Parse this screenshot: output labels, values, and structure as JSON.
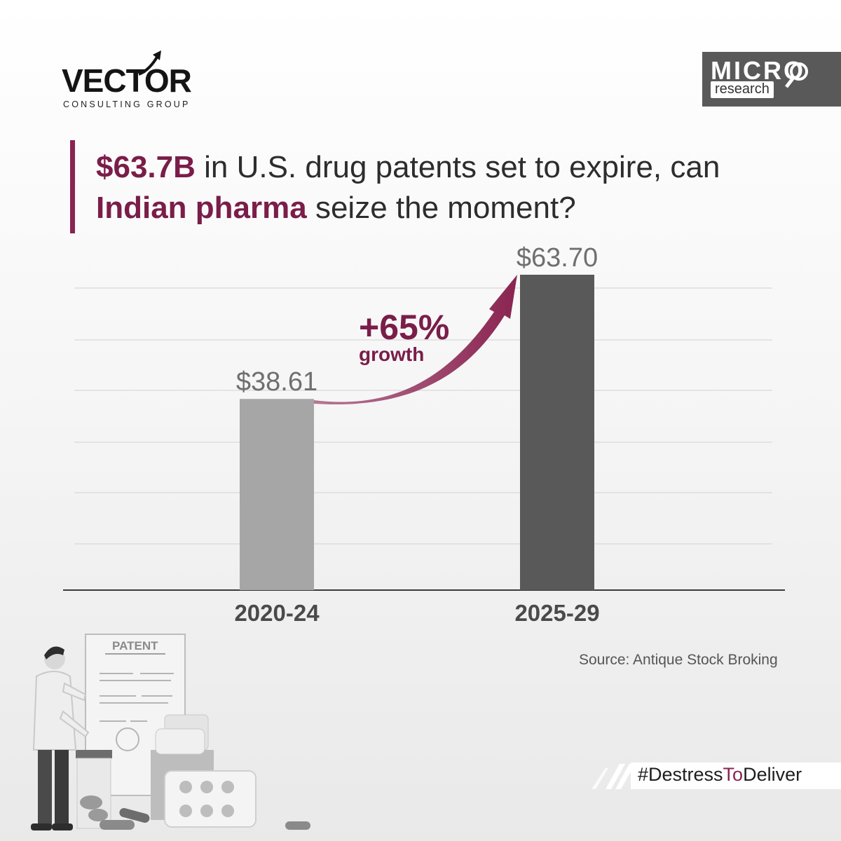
{
  "logos": {
    "vector_word": "VECTOR",
    "vector_sub": "CONSULTING GROUP",
    "micro_top": "MICRO",
    "micro_bottom": "research"
  },
  "headline": {
    "part1_bold": "$63.7B",
    "part1_rest": " in U.S. drug patents set to expire, can",
    "part2_bold": "Indian pharma",
    "part2_rest": " seize the moment?"
  },
  "chart_data": {
    "type": "bar",
    "categories": [
      "2020-24",
      "2025-29"
    ],
    "values": [
      38.61,
      63.7
    ],
    "value_labels": [
      "$38.61",
      "$63.70"
    ],
    "annotation": {
      "value": "+65%",
      "label": "growth"
    },
    "ylim": [
      0,
      70
    ],
    "grid": true
  },
  "illustration": {
    "patent_label": "PATENT"
  },
  "source": "Source: Antique Stock Broking",
  "hashtag": {
    "part1": "#Destress",
    "part2": "To",
    "part3": "Deliver"
  },
  "colors": {
    "accent": "#8a2451",
    "bar_1": "#a6a6a6",
    "bar_2": "#595959"
  }
}
